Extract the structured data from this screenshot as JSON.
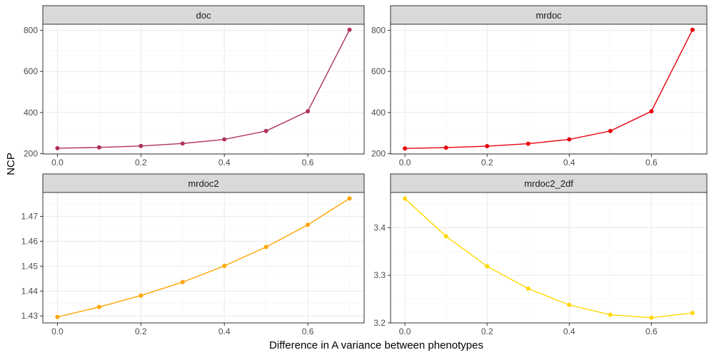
{
  "chart_data": {
    "type": "line",
    "xlabel": "Difference in A variance between phenotypes",
    "ylabel": "NCP",
    "x": [
      0.0,
      0.1,
      0.2,
      0.3,
      0.4,
      0.5,
      0.6,
      0.7
    ],
    "x_ticks": [
      0.0,
      0.2,
      0.4,
      0.6
    ],
    "x_tick_labels": [
      "0.0",
      "0.2",
      "0.4",
      "0.6"
    ],
    "xlim": [
      -0.035,
      0.735
    ],
    "grid": true,
    "legend": "none",
    "panels": [
      {
        "title": "doc",
        "color": "#b03060",
        "values": [
          226,
          230,
          237,
          249,
          269,
          310,
          406,
          803
        ],
        "ylim": [
          198,
          830
        ],
        "y_ticks": [
          200,
          400,
          600,
          800
        ],
        "y_tick_labels": [
          "200",
          "400",
          "600",
          "800"
        ]
      },
      {
        "title": "mrdoc",
        "color": "#e8000b",
        "values": [
          225,
          229,
          236,
          248,
          269,
          310,
          406,
          803
        ],
        "ylim": [
          198,
          830
        ],
        "y_ticks": [
          200,
          400,
          600,
          800
        ],
        "y_tick_labels": [
          "200",
          "400",
          "600",
          "800"
        ]
      },
      {
        "title": "mrdoc2",
        "color": "#ffa500",
        "values": [
          1.4296,
          1.4336,
          1.4382,
          1.4436,
          1.4501,
          1.4577,
          1.4666,
          1.4772
        ],
        "ylim": [
          1.4272,
          1.4796
        ],
        "y_ticks": [
          1.43,
          1.44,
          1.45,
          1.46,
          1.47
        ],
        "y_tick_labels": [
          "1.43",
          "1.44",
          "1.45",
          "1.46",
          "1.47"
        ]
      },
      {
        "title": "mrdoc2_2df",
        "color": "#ffd700",
        "values": [
          3.461,
          3.382,
          3.319,
          3.272,
          3.238,
          3.217,
          3.211,
          3.221
        ],
        "ylim": [
          3.2,
          3.474
        ],
        "y_ticks": [
          3.2,
          3.3,
          3.4
        ],
        "y_tick_labels": [
          "3.2",
          "3.3",
          "3.4"
        ]
      }
    ]
  }
}
